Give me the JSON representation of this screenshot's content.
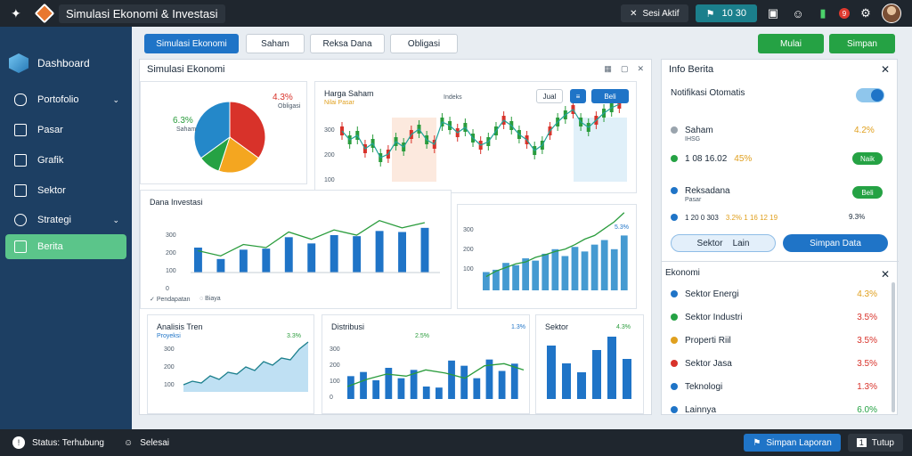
{
  "topbar": {
    "title": "Simulasi Ekonomi & Investasi",
    "user_label": "Sesi Aktif",
    "counter_value": "10 30",
    "notification_count": "9"
  },
  "sidebar": {
    "brand": "Dashboard",
    "items": [
      {
        "label": "Portofolio",
        "icon": "chat-icon",
        "has_chevron": true
      },
      {
        "label": "Pasar",
        "icon": "document-icon",
        "has_chevron": false
      },
      {
        "label": "Grafik",
        "icon": "board-icon",
        "has_chevron": false
      },
      {
        "label": "Sektor",
        "icon": "bank-icon",
        "has_chevron": false
      },
      {
        "label": "Strategi",
        "icon": "gauge-icon",
        "has_chevron": true
      },
      {
        "label": "Berita",
        "icon": "news-icon",
        "has_chevron": false
      }
    ]
  },
  "toolbar": {
    "buttons": [
      "Simulasi Ekonomi",
      "Saham",
      "Reksa Dana",
      "Obligasi"
    ],
    "right_buttons": [
      "Mulai",
      "Simpan"
    ]
  },
  "main_panel": {
    "title": "Simulasi Ekonomi",
    "pie_card": {
      "value_left": "6.3%",
      "value_left_sub": "Saham",
      "value_right": "4.3%",
      "value_right_sub": "Obligasi"
    },
    "candle_card": {
      "title": "Harga Saham",
      "subtitle": "Nilai Pasar",
      "mid_label": "Indeks",
      "btn_1": "Jual",
      "btn_2": "Beli",
      "y_ticks": [
        "300",
        "200",
        "100"
      ]
    },
    "bars_card": {
      "title": "Dana Investasi",
      "y_ticks": [
        "300",
        "200",
        "100",
        "0"
      ],
      "footer_left": "Pendapatan",
      "footer_mid": "Biaya"
    },
    "mixed_card": {
      "title": "",
      "value": "5.3%",
      "y_ticks": [
        "300",
        "200",
        "100"
      ]
    },
    "area_card": {
      "title": "Analisis Tren",
      "subtitle": "Proyeksi",
      "value": "3.3%",
      "y_ticks": [
        "300",
        "200",
        "100"
      ]
    },
    "bottom_mid_card": {
      "title": "Distribusi",
      "value": "2.5%",
      "value_2": "1.3%",
      "y_ticks": [
        "300",
        "200",
        "100",
        "0"
      ]
    },
    "bottom_right_card": {
      "title": "Sektor",
      "value": "4.3%"
    }
  },
  "right_panel": {
    "title": "Info Berita",
    "settings_label": "Notifikasi Otomatis",
    "rows": [
      {
        "name": "Saham",
        "sub": "IHSG",
        "value": "4.2%",
        "dot": "#9aa4ad"
      },
      {
        "name": "1 08 16.02",
        "value": "45%",
        "dot": "#25a244",
        "pill": "Naik"
      },
      {
        "name": "Reksadana",
        "sub": "Pasar",
        "dot": "#1f74c7",
        "pill": "Beli"
      },
      {
        "name": "1 20 0 303",
        "mid": "3.2% 1 16 12 19",
        "value": "9.3%",
        "dot": "#1f74c7"
      }
    ],
    "btn_secondary": "Sektor",
    "btn_secondary_2": "Lain",
    "btn_primary": "Simpan Data",
    "list_title": "Ekonomi",
    "list": [
      {
        "label": "Sektor Energi",
        "value": "4.3%",
        "color": "#1f74c7",
        "value_color": "#e0a01f"
      },
      {
        "label": "Sektor Industri",
        "value": "3.5%",
        "color": "#25a244",
        "value_color": "#d8322a"
      },
      {
        "label": "Properti Riil",
        "value": "3.5%",
        "color": "#e0a01f",
        "value_color": "#d8322a"
      },
      {
        "label": "Sektor Jasa",
        "value": "3.5%",
        "color": "#d8322a",
        "value_color": "#d8322a"
      },
      {
        "label": "Teknologi",
        "value": "1.3%",
        "color": "#1f74c7",
        "value_color": "#d8322a"
      },
      {
        "label": "Lainnya",
        "value": "6.0%",
        "color": "#1f74c7",
        "value_color": "#25a244"
      }
    ]
  },
  "statusbar": {
    "left_1": "Status: Terhubung",
    "left_2": "Selesai",
    "btn_left": "Simpan Laporan",
    "btn_right": "Tutup"
  },
  "chart_data": [
    {
      "type": "pie",
      "values": [
        35,
        20,
        10,
        35
      ],
      "colors": [
        "#d8322a",
        "#f4a620",
        "#25a244",
        "#2488c9"
      ]
    },
    {
      "type": "bar",
      "values": [
        120,
        65,
        110,
        115,
        170,
        140,
        180,
        175,
        200,
        195,
        215
      ],
      "overlay": [
        105,
        80,
        135,
        120,
        195,
        160,
        205,
        180,
        250,
        215,
        240
      ],
      "ylim": [
        0,
        300
      ]
    },
    {
      "type": "bar",
      "values": [
        40,
        45,
        60,
        55,
        70,
        65,
        80,
        90,
        75,
        95,
        85,
        100,
        110,
        90,
        120
      ],
      "line": [
        30,
        42,
        50,
        58,
        62,
        72,
        78,
        85,
        90,
        100,
        112,
        120,
        135,
        150,
        170
      ],
      "ylim": [
        0,
        300
      ]
    },
    {
      "type": "area",
      "values": [
        20,
        30,
        25,
        45,
        35,
        55,
        50,
        70,
        60,
        85,
        75,
        95,
        90,
        120,
        140
      ],
      "ylim": [
        0,
        300
      ]
    },
    {
      "type": "bar",
      "values": [
        110,
        130,
        90,
        150,
        100,
        140,
        60,
        55,
        185,
        160,
        100,
        190,
        135,
        170
      ],
      "line": [
        60,
        95,
        120,
        110,
        140,
        125,
        100,
        160,
        170,
        140
      ],
      "ylim": [
        0,
        300
      ]
    }
  ]
}
